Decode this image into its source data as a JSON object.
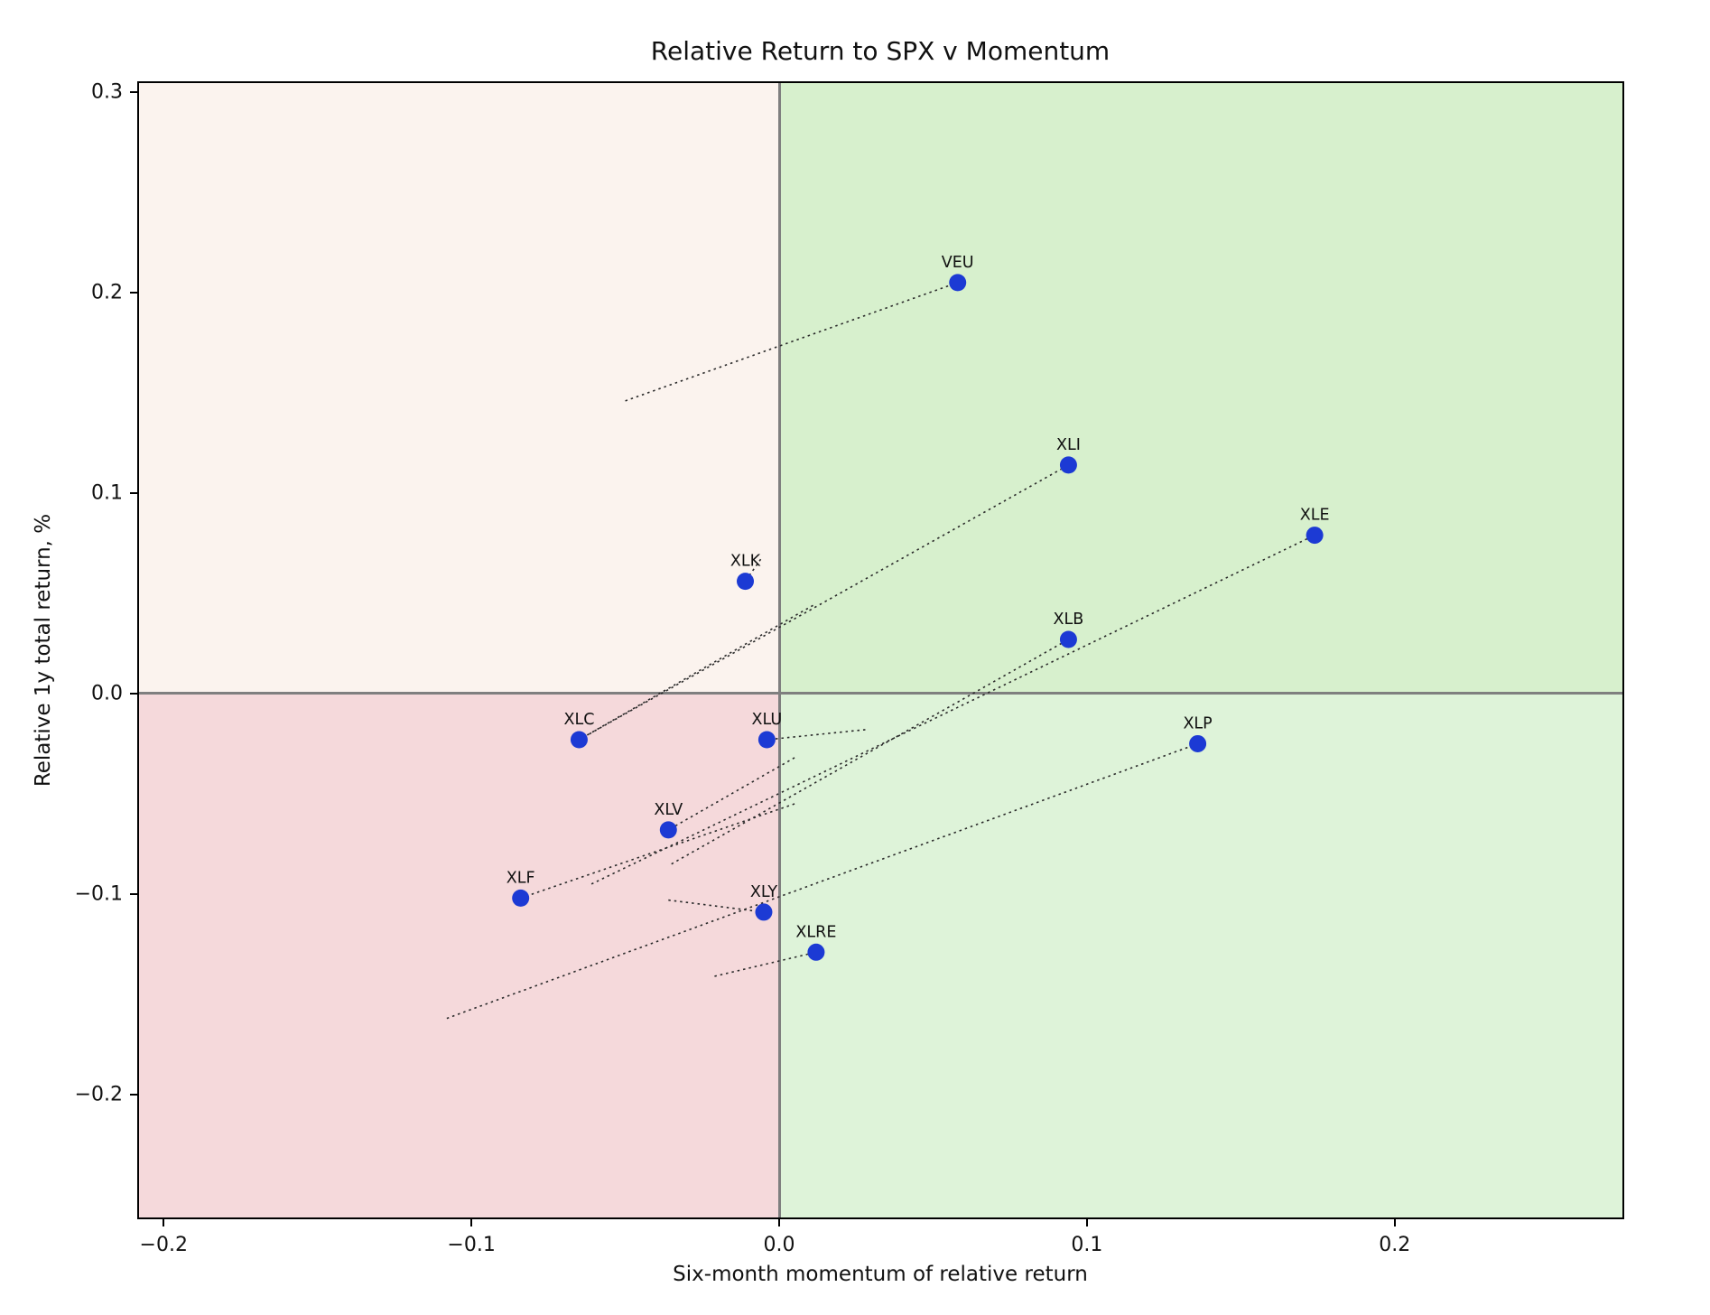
{
  "figure": {
    "title": "Relative Return to SPX v Momentum",
    "x_axis_label": "Six-month momentum of relative return",
    "y_axis_label": "Relative 1y total return, %"
  },
  "chart_data": {
    "type": "scatter",
    "title": "Relative Return to SPX v Momentum",
    "xlabel": "Six-month momentum of relative return",
    "ylabel": "Relative 1y total return, %",
    "xlim": [
      -0.208,
      0.274
    ],
    "ylim": [
      -0.2613,
      0.3045
    ],
    "grid": false,
    "legend": "none",
    "x_ticks": [
      {
        "label": "−0.2",
        "value": -0.2
      },
      {
        "label": "−0.1",
        "value": -0.1
      },
      {
        "label": "0.0",
        "value": 0.0
      },
      {
        "label": "0.1",
        "value": 0.1
      },
      {
        "label": "0.2",
        "value": 0.2
      }
    ],
    "y_ticks": [
      {
        "label": "0.3",
        "value": 0.3
      },
      {
        "label": "0.2",
        "value": 0.2
      },
      {
        "label": "0.1",
        "value": 0.1
      },
      {
        "label": "0.0",
        "value": 0.0
      },
      {
        "label": "−0.1",
        "value": -0.1
      },
      {
        "label": "−0.2",
        "value": -0.2
      }
    ],
    "colors": {
      "quadrant_top_left": "#fbf3ee",
      "quadrant_top_right": "#d7f0cd",
      "quadrant_bottom_left": "#f5d9db",
      "quadrant_bottom_right": "#def3d9",
      "zero_line": "#7f7f7f",
      "marker": "#1c3ad4",
      "trail": "#2a2a2a"
    },
    "series": [
      {
        "name": "VEU",
        "x": 0.058,
        "y": 0.205,
        "trail_from": [
          -0.05,
          0.146
        ]
      },
      {
        "name": "XLI",
        "x": 0.094,
        "y": 0.114,
        "trail_from": [
          -0.065,
          -0.023
        ]
      },
      {
        "name": "XLE",
        "x": 0.174,
        "y": 0.079,
        "trail_from": [
          -0.061,
          -0.095
        ]
      },
      {
        "name": "XLK",
        "x": -0.011,
        "y": 0.056,
        "trail_from": [
          -0.006,
          0.067
        ]
      },
      {
        "name": "XLB",
        "x": 0.094,
        "y": 0.027,
        "trail_from": [
          -0.035,
          -0.085
        ]
      },
      {
        "name": "XLC",
        "x": -0.065,
        "y": -0.023,
        "trail_from": [
          0.011,
          0.044
        ]
      },
      {
        "name": "XLU",
        "x": -0.004,
        "y": -0.023,
        "trail_from": [
          0.028,
          -0.018
        ]
      },
      {
        "name": "XLP",
        "x": 0.136,
        "y": -0.025,
        "trail_from": [
          -0.108,
          -0.162
        ]
      },
      {
        "name": "XLV",
        "x": -0.036,
        "y": -0.068,
        "trail_from": [
          0.005,
          -0.032
        ]
      },
      {
        "name": "XLF",
        "x": -0.084,
        "y": -0.102,
        "trail_from": [
          0.005,
          -0.055
        ]
      },
      {
        "name": "XLY",
        "x": -0.005,
        "y": -0.109,
        "trail_from": [
          -0.036,
          -0.103
        ]
      },
      {
        "name": "XLRE",
        "x": 0.012,
        "y": -0.129,
        "trail_from": [
          -0.021,
          -0.141
        ]
      }
    ]
  }
}
